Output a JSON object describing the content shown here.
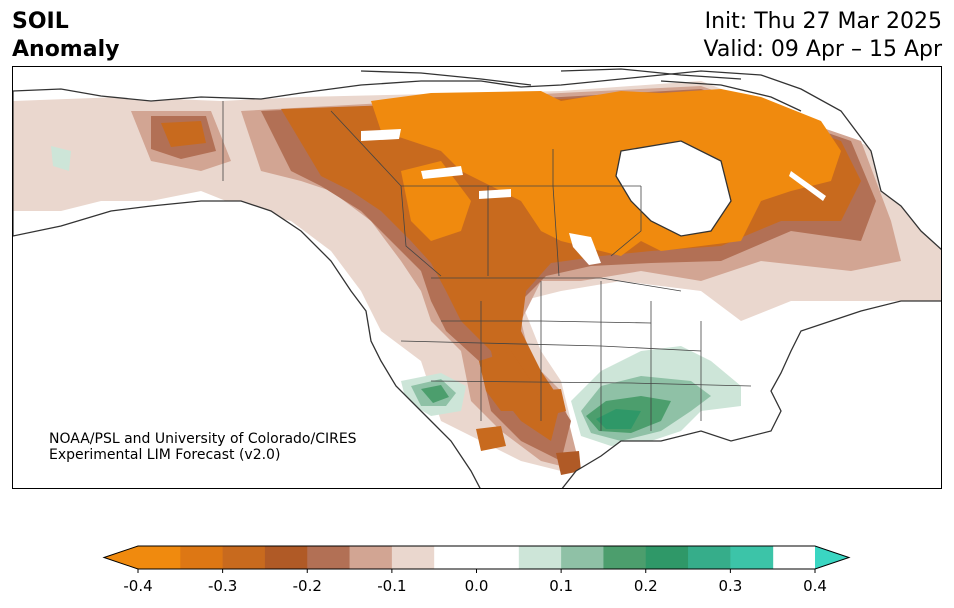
{
  "header": {
    "variable": "SOIL",
    "subtitle": "Anomaly",
    "init": "Init: Thu 27 Mar 2025",
    "valid": "Valid: 09 Apr – 15 Apr"
  },
  "credit": {
    "line1": "NOAA/PSL and University of Colorado/CIRES",
    "line2": "Experimental LIM Forecast (v2.0)"
  },
  "colorbar": {
    "min": -0.4,
    "max": 0.4,
    "extend": "both",
    "bins": [
      {
        "from": -0.4,
        "to": -0.35,
        "color": "#f08a0e"
      },
      {
        "from": -0.35,
        "to": -0.3,
        "color": "#dd7714"
      },
      {
        "from": -0.3,
        "to": -0.25,
        "color": "#c86a1e"
      },
      {
        "from": -0.25,
        "to": -0.2,
        "color": "#b05a26"
      },
      {
        "from": -0.2,
        "to": -0.15,
        "color": "#b27055"
      },
      {
        "from": -0.15,
        "to": -0.1,
        "color": "#d2a593"
      },
      {
        "from": -0.1,
        "to": -0.05,
        "color": "#ead7ce"
      },
      {
        "from": -0.05,
        "to": 0.05,
        "color": "#ffffff"
      },
      {
        "from": 0.05,
        "to": 0.1,
        "color": "#cde5d8"
      },
      {
        "from": 0.1,
        "to": 0.15,
        "color": "#8fc1a6"
      },
      {
        "from": 0.15,
        "to": 0.2,
        "color": "#4c9e6d"
      },
      {
        "from": 0.2,
        "to": 0.25,
        "color": "#2f9868"
      },
      {
        "from": 0.25,
        "to": 0.3,
        "color": "#36ad8a"
      },
      {
        "from": 0.3,
        "to": 0.35,
        "color": "#3cc4a8"
      }
    ],
    "under_color": "#f08a0e",
    "over_color": "#3ad6c2",
    "ticks": [
      {
        "value": -0.4,
        "label": "-0.4"
      },
      {
        "value": -0.3,
        "label": "-0.3"
      },
      {
        "value": -0.2,
        "label": "-0.2"
      },
      {
        "value": -0.1,
        "label": "-0.1"
      },
      {
        "value": 0.0,
        "label": "0.0"
      },
      {
        "value": 0.1,
        "label": "0.1"
      },
      {
        "value": 0.2,
        "label": "0.2"
      },
      {
        "value": 0.3,
        "label": "0.3"
      },
      {
        "value": 0.4,
        "label": "0.4"
      }
    ]
  },
  "anomaly_regions": [
    {
      "id": "canada-central",
      "value": -0.4
    },
    {
      "id": "canada-east-quebec",
      "value": -0.25
    },
    {
      "id": "canada-northwest",
      "value": -0.3
    },
    {
      "id": "us-rockies-southern-plains",
      "value": -0.3
    },
    {
      "id": "alaska-west",
      "value": -0.1
    },
    {
      "id": "us-northeast",
      "value": -0.15
    },
    {
      "id": "us-southwest-plateau",
      "value": 0.2
    },
    {
      "id": "us-gulf-coast",
      "value": 0.25
    },
    {
      "id": "us-southeast",
      "value": 0.15
    },
    {
      "id": "us-ohio-valley",
      "value": 0.1
    }
  ]
}
